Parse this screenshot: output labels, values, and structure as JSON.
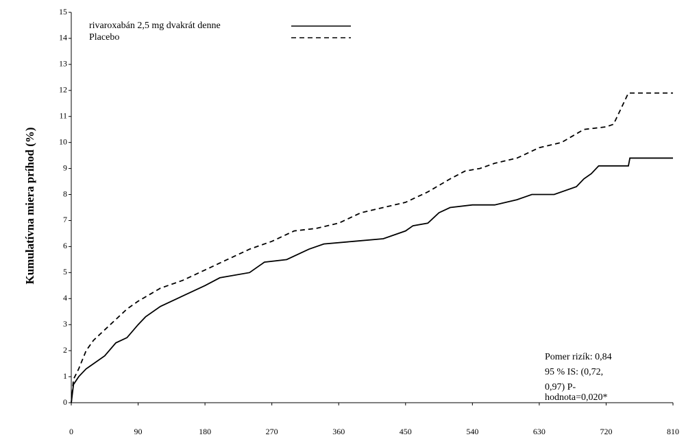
{
  "chart_data": {
    "type": "line",
    "y_axis_label": "Kumulatívna miera príhod (%)",
    "xlim": [
      0,
      810
    ],
    "xticks": [
      0,
      90,
      180,
      270,
      360,
      450,
      540,
      630,
      720,
      810
    ],
    "ylim": [
      0,
      15
    ],
    "yticks": [
      0,
      1,
      2,
      3,
      4,
      5,
      6,
      7,
      8,
      9,
      10,
      11,
      12,
      13,
      14,
      15
    ],
    "legend_position": "upper left",
    "series": [
      {
        "name": "rivaroxabán 2,5 mg dvakrát denne",
        "color": "#000000",
        "line_style": "solid",
        "x": [
          0,
          3,
          10,
          20,
          30,
          45,
          60,
          75,
          90,
          100,
          120,
          150,
          180,
          200,
          240,
          260,
          290,
          320,
          340,
          380,
          420,
          450,
          460,
          480,
          495,
          510,
          540,
          570,
          600,
          620,
          650,
          680,
          690,
          700,
          710,
          750,
          752,
          810
        ],
        "values": [
          0,
          0.7,
          1.0,
          1.3,
          1.5,
          1.8,
          2.3,
          2.5,
          3.0,
          3.3,
          3.7,
          4.1,
          4.5,
          4.8,
          5.0,
          5.4,
          5.5,
          5.9,
          6.1,
          6.2,
          6.3,
          6.6,
          6.8,
          6.9,
          7.3,
          7.5,
          7.6,
          7.6,
          7.8,
          8.0,
          8.0,
          8.3,
          8.6,
          8.8,
          9.1,
          9.1,
          9.4,
          9.4
        ]
      },
      {
        "name": "Placebo",
        "color": "#000000",
        "line_style": "dashed",
        "x": [
          0,
          3,
          10,
          20,
          30,
          45,
          60,
          75,
          90,
          120,
          150,
          180,
          210,
          240,
          270,
          300,
          330,
          360,
          390,
          420,
          450,
          480,
          510,
          530,
          550,
          570,
          600,
          630,
          660,
          690,
          720,
          730,
          740,
          750,
          810
        ],
        "values": [
          0,
          0.9,
          1.3,
          2.0,
          2.4,
          2.8,
          3.2,
          3.6,
          3.9,
          4.4,
          4.7,
          5.1,
          5.5,
          5.9,
          6.2,
          6.6,
          6.7,
          6.9,
          7.3,
          7.5,
          7.7,
          8.1,
          8.6,
          8.9,
          9.0,
          9.2,
          9.4,
          9.8,
          10.0,
          10.5,
          10.6,
          10.7,
          11.3,
          11.9,
          11.9
        ]
      }
    ],
    "annotation": [
      "Pomer rizík: 0,84",
      "95 % IS: (0,72,",
      "0,97) P-",
      "hodnota=0,020*"
    ]
  }
}
